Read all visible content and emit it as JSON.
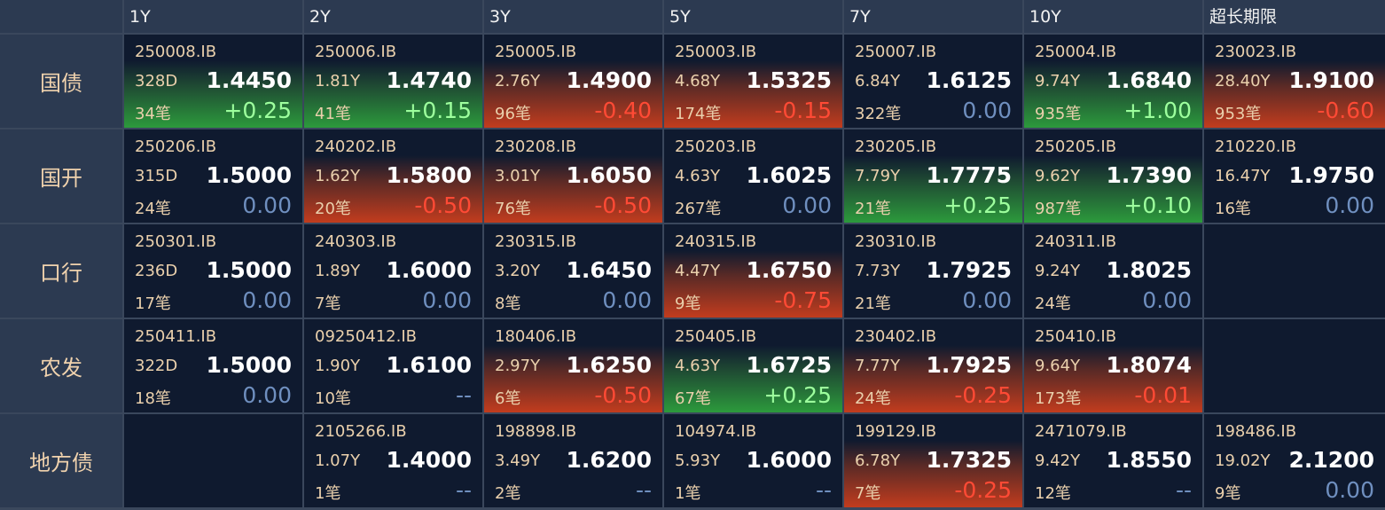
{
  "table": {
    "columns": [
      "1Y",
      "2Y",
      "3Y",
      "5Y",
      "7Y",
      "10Y",
      "超长期限"
    ],
    "rows": [
      {
        "label": "国债",
        "cells": [
          {
            "code": "250008.IB",
            "term": "328D",
            "rate": "1.4450",
            "count": "34笔",
            "change": "+0.25"
          },
          {
            "code": "250006.IB",
            "term": "1.81Y",
            "rate": "1.4740",
            "count": "41笔",
            "change": "+0.15"
          },
          {
            "code": "250005.IB",
            "term": "2.76Y",
            "rate": "1.4900",
            "count": "96笔",
            "change": "-0.40"
          },
          {
            "code": "250003.IB",
            "term": "4.68Y",
            "rate": "1.5325",
            "count": "174笔",
            "change": "-0.15"
          },
          {
            "code": "250007.IB",
            "term": "6.84Y",
            "rate": "1.6125",
            "count": "322笔",
            "change": "0.00"
          },
          {
            "code": "250004.IB",
            "term": "9.74Y",
            "rate": "1.6840",
            "count": "935笔",
            "change": "+1.00"
          },
          {
            "code": "230023.IB",
            "term": "28.40Y",
            "rate": "1.9100",
            "count": "953笔",
            "change": "-0.60"
          }
        ]
      },
      {
        "label": "国开",
        "cells": [
          {
            "code": "250206.IB",
            "term": "315D",
            "rate": "1.5000",
            "count": "24笔",
            "change": "0.00"
          },
          {
            "code": "240202.IB",
            "term": "1.62Y",
            "rate": "1.5800",
            "count": "20笔",
            "change": "-0.50"
          },
          {
            "code": "230208.IB",
            "term": "3.01Y",
            "rate": "1.6050",
            "count": "76笔",
            "change": "-0.50"
          },
          {
            "code": "250203.IB",
            "term": "4.63Y",
            "rate": "1.6025",
            "count": "267笔",
            "change": "0.00"
          },
          {
            "code": "230205.IB",
            "term": "7.79Y",
            "rate": "1.7775",
            "count": "21笔",
            "change": "+0.25"
          },
          {
            "code": "250205.IB",
            "term": "9.62Y",
            "rate": "1.7390",
            "count": "987笔",
            "change": "+0.10"
          },
          {
            "code": "210220.IB",
            "term": "16.47Y",
            "rate": "1.9750",
            "count": "16笔",
            "change": "0.00"
          }
        ]
      },
      {
        "label": "口行",
        "cells": [
          {
            "code": "250301.IB",
            "term": "236D",
            "rate": "1.5000",
            "count": "17笔",
            "change": "0.00"
          },
          {
            "code": "240303.IB",
            "term": "1.89Y",
            "rate": "1.6000",
            "count": "7笔",
            "change": "0.00"
          },
          {
            "code": "230315.IB",
            "term": "3.20Y",
            "rate": "1.6450",
            "count": "8笔",
            "change": "0.00"
          },
          {
            "code": "240315.IB",
            "term": "4.47Y",
            "rate": "1.6750",
            "count": "9笔",
            "change": "-0.75"
          },
          {
            "code": "230310.IB",
            "term": "7.73Y",
            "rate": "1.7925",
            "count": "21笔",
            "change": "0.00"
          },
          {
            "code": "240311.IB",
            "term": "9.24Y",
            "rate": "1.8025",
            "count": "24笔",
            "change": "0.00"
          },
          null
        ]
      },
      {
        "label": "农发",
        "cells": [
          {
            "code": "250411.IB",
            "term": "322D",
            "rate": "1.5000",
            "count": "18笔",
            "change": "0.00"
          },
          {
            "code": "09250412.IB",
            "term": "1.90Y",
            "rate": "1.6100",
            "count": "10笔",
            "change": "--"
          },
          {
            "code": "180406.IB",
            "term": "2.97Y",
            "rate": "1.6250",
            "count": "6笔",
            "change": "-0.50"
          },
          {
            "code": "250405.IB",
            "term": "4.63Y",
            "rate": "1.6725",
            "count": "67笔",
            "change": "+0.25"
          },
          {
            "code": "230402.IB",
            "term": "7.77Y",
            "rate": "1.7925",
            "count": "24笔",
            "change": "-0.25"
          },
          {
            "code": "250410.IB",
            "term": "9.64Y",
            "rate": "1.8074",
            "count": "173笔",
            "change": "-0.01"
          },
          null
        ]
      },
      {
        "label": "地方债",
        "cells": [
          null,
          {
            "code": "2105266.IB",
            "term": "1.07Y",
            "rate": "1.4000",
            "count": "1笔",
            "change": "--"
          },
          {
            "code": "198898.IB",
            "term": "3.49Y",
            "rate": "1.6200",
            "count": "2笔",
            "change": "--"
          },
          {
            "code": "104974.IB",
            "term": "5.93Y",
            "rate": "1.6000",
            "count": "1笔",
            "change": "--"
          },
          {
            "code": "199129.IB",
            "term": "6.78Y",
            "rate": "1.7325",
            "count": "7笔",
            "change": "-0.25"
          },
          {
            "code": "2471079.IB",
            "term": "9.42Y",
            "rate": "1.8550",
            "count": "12笔",
            "change": "--"
          },
          {
            "code": "198486.IB",
            "term": "19.02Y",
            "rate": "2.1200",
            "count": "9笔",
            "change": "0.00"
          }
        ]
      }
    ]
  }
}
